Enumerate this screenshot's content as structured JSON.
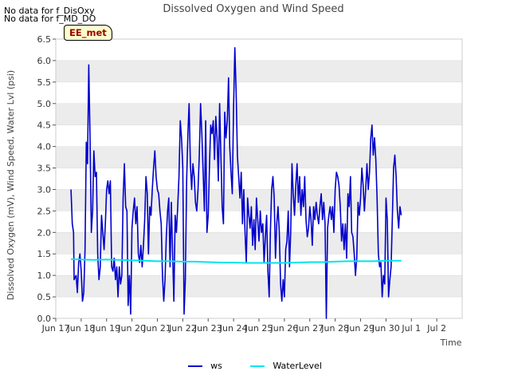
{
  "notes": [
    "No data for f_DisOxy",
    "No data for f_MD_DO"
  ],
  "station_tag": "EE_met",
  "colors": {
    "ws": "#0000cc",
    "waterlevel": "#00e5ee",
    "band": "#ececec",
    "grid": "#ffffff",
    "axis": "#555555"
  },
  "chart_data": {
    "type": "line",
    "title": "Dissolved Oxygen and Wind Speed",
    "xlabel": "Time",
    "ylabel": "Dissolved Oxygen (mV), Wind Speed, Water Lvl (psi)",
    "xlim": [
      0,
      16
    ],
    "ylim": [
      0,
      6.5
    ],
    "x_tick_positions": [
      0,
      1,
      2,
      3,
      4,
      5,
      6,
      7,
      8,
      9,
      10,
      11,
      12,
      13,
      14,
      15,
      16
    ],
    "x_tick_labels": [
      "Jun 17",
      "Jun 18",
      "Jun 19",
      "Jun 20",
      "Jun 21",
      "Jun 22",
      "Jun 23",
      "Jun 24",
      "Jun 25",
      "Jun 26",
      "Jun 27",
      "Jun 28",
      "Jun 29",
      "Jun 30",
      "Jul 1",
      "Jul 2",
      ""
    ],
    "x_tick_display": [
      "Jun 17",
      "Jun 18",
      "Jun 19",
      "Jun 20",
      "Jun 21",
      "Jun 22",
      "Jun 23",
      "Jun 24",
      "Jun 25",
      "Jun 26",
      "Jun 27",
      "Jun 28",
      "Jun 29",
      "Jun 30",
      "Jul 1",
      "Jul 2"
    ],
    "y_ticks": [
      "0.0",
      "0.5",
      "1.0",
      "1.5",
      "2.0",
      "2.5",
      "3.0",
      "3.5",
      "4.0",
      "4.5",
      "5.0",
      "5.5",
      "6.0",
      "6.5"
    ],
    "legend": [
      "ws",
      "WaterLevel"
    ],
    "series": [
      {
        "name": "ws",
        "points": [
          [
            0.6,
            3.0
          ],
          [
            0.65,
            2.2
          ],
          [
            0.7,
            2.0
          ],
          [
            0.72,
            0.9
          ],
          [
            0.8,
            1.0
          ],
          [
            0.85,
            0.6
          ],
          [
            0.9,
            1.3
          ],
          [
            0.95,
            1.5
          ],
          [
            1.0,
            1.1
          ],
          [
            1.05,
            0.4
          ],
          [
            1.1,
            0.6
          ],
          [
            1.15,
            1.6
          ],
          [
            1.2,
            4.1
          ],
          [
            1.25,
            3.6
          ],
          [
            1.3,
            5.9
          ],
          [
            1.35,
            4.2
          ],
          [
            1.4,
            2.0
          ],
          [
            1.45,
            2.5
          ],
          [
            1.5,
            3.9
          ],
          [
            1.55,
            3.3
          ],
          [
            1.6,
            3.4
          ],
          [
            1.65,
            1.5
          ],
          [
            1.7,
            0.9
          ],
          [
            1.75,
            1.2
          ],
          [
            1.8,
            2.4
          ],
          [
            1.85,
            2.0
          ],
          [
            1.9,
            1.6
          ],
          [
            1.95,
            2.2
          ],
          [
            2.0,
            3.0
          ],
          [
            2.05,
            3.2
          ],
          [
            2.1,
            2.9
          ],
          [
            2.15,
            3.2
          ],
          [
            2.2,
            1.2
          ],
          [
            2.25,
            1.1
          ],
          [
            2.3,
            1.4
          ],
          [
            2.35,
            0.9
          ],
          [
            2.4,
            1.2
          ],
          [
            2.45,
            0.5
          ],
          [
            2.5,
            1.2
          ],
          [
            2.55,
            0.8
          ],
          [
            2.6,
            1.0
          ],
          [
            2.65,
            2.8
          ],
          [
            2.7,
            3.6
          ],
          [
            2.75,
            2.6
          ],
          [
            2.8,
            2.5
          ],
          [
            2.85,
            0.3
          ],
          [
            2.9,
            1.0
          ],
          [
            2.95,
            0.1
          ],
          [
            3.0,
            2.1
          ],
          [
            3.05,
            2.5
          ],
          [
            3.1,
            2.8
          ],
          [
            3.15,
            2.2
          ],
          [
            3.2,
            2.6
          ],
          [
            3.25,
            1.5
          ],
          [
            3.3,
            1.3
          ],
          [
            3.35,
            1.7
          ],
          [
            3.4,
            1.2
          ],
          [
            3.45,
            1.7
          ],
          [
            3.5,
            2.3
          ],
          [
            3.55,
            3.3
          ],
          [
            3.6,
            2.9
          ],
          [
            3.65,
            1.5
          ],
          [
            3.7,
            2.6
          ],
          [
            3.75,
            2.4
          ],
          [
            3.8,
            3.0
          ],
          [
            3.85,
            3.5
          ],
          [
            3.9,
            3.9
          ],
          [
            3.95,
            3.3
          ],
          [
            4.0,
            3.0
          ],
          [
            4.05,
            2.9
          ],
          [
            4.1,
            2.5
          ],
          [
            4.15,
            2.2
          ],
          [
            4.2,
            1.0
          ],
          [
            4.25,
            0.4
          ],
          [
            4.3,
            0.9
          ],
          [
            4.35,
            1.9
          ],
          [
            4.4,
            2.5
          ],
          [
            4.45,
            2.8
          ],
          [
            4.5,
            1.2
          ],
          [
            4.55,
            2.7
          ],
          [
            4.6,
            1.5
          ],
          [
            4.65,
            0.4
          ],
          [
            4.7,
            2.4
          ],
          [
            4.75,
            2.0
          ],
          [
            4.8,
            2.6
          ],
          [
            4.85,
            3.3
          ],
          [
            4.9,
            4.6
          ],
          [
            4.95,
            4.2
          ],
          [
            5.0,
            3.5
          ],
          [
            5.05,
            0.1
          ],
          [
            5.1,
            0.9
          ],
          [
            5.15,
            3.2
          ],
          [
            5.2,
            4.3
          ],
          [
            5.25,
            5.0
          ],
          [
            5.3,
            3.6
          ],
          [
            5.35,
            3.0
          ],
          [
            5.4,
            3.6
          ],
          [
            5.45,
            3.3
          ],
          [
            5.5,
            2.7
          ],
          [
            5.55,
            2.5
          ],
          [
            5.6,
            3.0
          ],
          [
            5.65,
            3.8
          ],
          [
            5.7,
            5.0
          ],
          [
            5.75,
            4.3
          ],
          [
            5.8,
            3.4
          ],
          [
            5.85,
            2.5
          ],
          [
            5.9,
            4.6
          ],
          [
            5.95,
            2.0
          ],
          [
            6.0,
            2.4
          ],
          [
            6.05,
            3.5
          ],
          [
            6.1,
            4.5
          ],
          [
            6.15,
            4.3
          ],
          [
            6.2,
            4.6
          ],
          [
            6.25,
            3.7
          ],
          [
            6.3,
            4.7
          ],
          [
            6.35,
            4.2
          ],
          [
            6.4,
            3.2
          ],
          [
            6.45,
            5.0
          ],
          [
            6.5,
            3.8
          ],
          [
            6.55,
            2.6
          ],
          [
            6.6,
            2.2
          ],
          [
            6.65,
            4.8
          ],
          [
            6.7,
            4.2
          ],
          [
            6.75,
            4.6
          ],
          [
            6.8,
            5.6
          ],
          [
            6.85,
            4.0
          ],
          [
            6.9,
            3.4
          ],
          [
            6.95,
            2.9
          ],
          [
            7.0,
            4.9
          ],
          [
            7.05,
            6.3
          ],
          [
            7.1,
            5.3
          ],
          [
            7.15,
            3.8
          ],
          [
            7.2,
            3.3
          ],
          [
            7.25,
            2.8
          ],
          [
            7.3,
            3.4
          ],
          [
            7.35,
            2.2
          ],
          [
            7.4,
            3.0
          ],
          [
            7.45,
            2.0
          ],
          [
            7.5,
            1.3
          ],
          [
            7.55,
            2.8
          ],
          [
            7.6,
            2.4
          ],
          [
            7.65,
            2.1
          ],
          [
            7.7,
            2.6
          ],
          [
            7.75,
            1.7
          ],
          [
            7.8,
            2.3
          ],
          [
            7.85,
            1.6
          ],
          [
            7.9,
            2.8
          ],
          [
            7.95,
            2.3
          ],
          [
            8.0,
            1.8
          ],
          [
            8.05,
            2.5
          ],
          [
            8.1,
            2.0
          ],
          [
            8.15,
            2.2
          ],
          [
            8.2,
            1.3
          ],
          [
            8.25,
            1.9
          ],
          [
            8.3,
            2.4
          ],
          [
            8.35,
            1.1
          ],
          [
            8.4,
            0.5
          ],
          [
            8.45,
            2.0
          ],
          [
            8.5,
            3.0
          ],
          [
            8.55,
            3.3
          ],
          [
            8.6,
            2.8
          ],
          [
            8.65,
            1.4
          ],
          [
            8.7,
            2.2
          ],
          [
            8.75,
            2.6
          ],
          [
            8.8,
            2.0
          ],
          [
            8.85,
            0.8
          ],
          [
            8.9,
            0.4
          ],
          [
            8.95,
            0.9
          ],
          [
            9.0,
            0.5
          ],
          [
            9.05,
            1.6
          ],
          [
            9.1,
            1.8
          ],
          [
            9.15,
            2.5
          ],
          [
            9.2,
            1.2
          ],
          [
            9.25,
            2.0
          ],
          [
            9.3,
            3.6
          ],
          [
            9.35,
            2.9
          ],
          [
            9.4,
            2.4
          ],
          [
            9.45,
            3.1
          ],
          [
            9.5,
            3.6
          ],
          [
            9.55,
            2.7
          ],
          [
            9.6,
            3.3
          ],
          [
            9.65,
            2.4
          ],
          [
            9.7,
            3.0
          ],
          [
            9.75,
            2.6
          ],
          [
            9.8,
            3.3
          ],
          [
            9.85,
            2.3
          ],
          [
            9.9,
            1.9
          ],
          [
            9.95,
            2.1
          ],
          [
            10.0,
            2.6
          ],
          [
            10.05,
            2.3
          ],
          [
            10.1,
            1.7
          ],
          [
            10.15,
            2.6
          ],
          [
            10.2,
            2.3
          ],
          [
            10.25,
            2.7
          ],
          [
            10.3,
            2.4
          ],
          [
            10.35,
            2.2
          ],
          [
            10.4,
            2.6
          ],
          [
            10.45,
            2.9
          ],
          [
            10.5,
            2.3
          ],
          [
            10.55,
            2.7
          ],
          [
            10.6,
            2.2
          ],
          [
            10.65,
            0.0
          ],
          [
            10.7,
            2.1
          ],
          [
            10.75,
            2.4
          ],
          [
            10.8,
            2.6
          ],
          [
            10.85,
            2.3
          ],
          [
            10.9,
            2.6
          ],
          [
            10.95,
            2.0
          ],
          [
            11.0,
            3.0
          ],
          [
            11.05,
            3.4
          ],
          [
            11.1,
            3.3
          ],
          [
            11.15,
            3.1
          ],
          [
            11.2,
            2.6
          ],
          [
            11.25,
            1.8
          ],
          [
            11.3,
            2.2
          ],
          [
            11.35,
            1.6
          ],
          [
            11.4,
            2.2
          ],
          [
            11.45,
            1.4
          ],
          [
            11.5,
            2.9
          ],
          [
            11.55,
            2.6
          ],
          [
            11.6,
            3.3
          ],
          [
            11.65,
            2.0
          ],
          [
            11.7,
            1.9
          ],
          [
            11.75,
            1.5
          ],
          [
            11.8,
            1.0
          ],
          [
            11.85,
            1.4
          ],
          [
            11.9,
            2.7
          ],
          [
            11.95,
            2.4
          ],
          [
            12.0,
            2.8
          ],
          [
            12.05,
            3.5
          ],
          [
            12.1,
            3.1
          ],
          [
            12.15,
            2.5
          ],
          [
            12.2,
            3.0
          ],
          [
            12.25,
            3.6
          ],
          [
            12.3,
            3.0
          ],
          [
            12.35,
            3.4
          ],
          [
            12.4,
            4.2
          ],
          [
            12.45,
            4.5
          ],
          [
            12.5,
            3.8
          ],
          [
            12.55,
            4.2
          ],
          [
            12.6,
            3.7
          ],
          [
            12.65,
            2.8
          ],
          [
            12.7,
            1.5
          ],
          [
            12.75,
            1.2
          ],
          [
            12.8,
            1.3
          ],
          [
            12.85,
            0.5
          ],
          [
            12.9,
            1.0
          ],
          [
            12.95,
            0.8
          ],
          [
            13.0,
            2.8
          ],
          [
            13.05,
            2.3
          ],
          [
            13.1,
            0.5
          ],
          [
            13.15,
            0.9
          ],
          [
            13.2,
            1.2
          ],
          [
            13.25,
            2.3
          ],
          [
            13.3,
            3.5
          ],
          [
            13.35,
            3.8
          ],
          [
            13.4,
            3.3
          ],
          [
            13.45,
            2.5
          ],
          [
            13.5,
            2.1
          ],
          [
            13.55,
            2.6
          ],
          [
            13.6,
            2.4
          ]
        ]
      },
      {
        "name": "WaterLevel",
        "points": [
          [
            0.6,
            1.38
          ],
          [
            1.0,
            1.37
          ],
          [
            1.5,
            1.36
          ],
          [
            2.0,
            1.37
          ],
          [
            2.5,
            1.36
          ],
          [
            3.0,
            1.35
          ],
          [
            3.5,
            1.34
          ],
          [
            4.0,
            1.33
          ],
          [
            4.5,
            1.33
          ],
          [
            5.0,
            1.32
          ],
          [
            5.5,
            1.32
          ],
          [
            6.0,
            1.31
          ],
          [
            6.5,
            1.3
          ],
          [
            7.0,
            1.3
          ],
          [
            7.5,
            1.29
          ],
          [
            8.0,
            1.29
          ],
          [
            8.5,
            1.29
          ],
          [
            9.0,
            1.29
          ],
          [
            9.5,
            1.3
          ],
          [
            10.0,
            1.31
          ],
          [
            10.5,
            1.31
          ],
          [
            11.0,
            1.32
          ],
          [
            11.5,
            1.33
          ],
          [
            12.0,
            1.33
          ],
          [
            12.5,
            1.33
          ],
          [
            13.0,
            1.34
          ],
          [
            13.5,
            1.34
          ],
          [
            13.6,
            1.34
          ]
        ]
      }
    ]
  }
}
